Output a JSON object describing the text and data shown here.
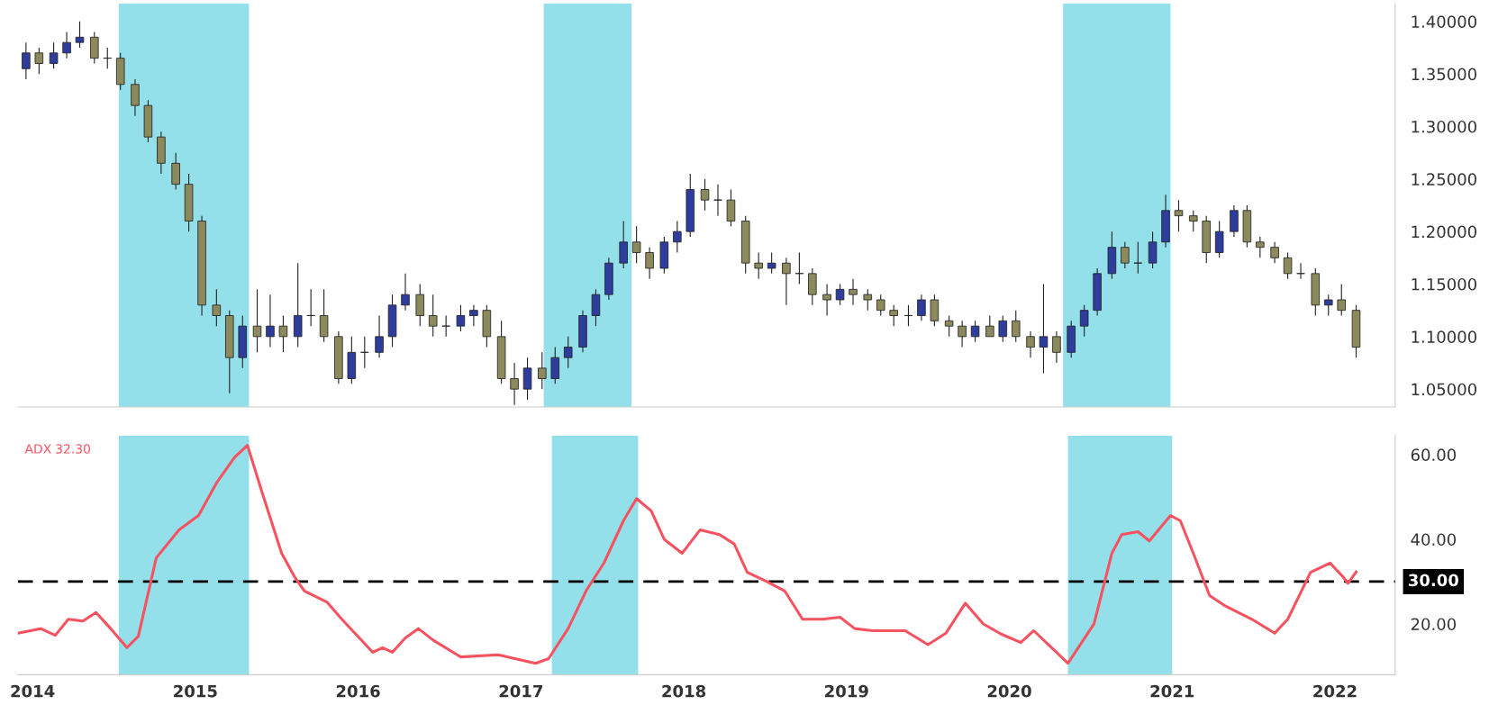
{
  "chart_data": [
    {
      "type": "candlestick",
      "tick_labels": "y",
      "x": [
        2013.96,
        2014.04,
        2014.13,
        2014.21,
        2014.29,
        2014.38,
        2014.46,
        2014.54,
        2014.63,
        2014.71,
        2014.79,
        2014.88,
        2014.96,
        2015.04,
        2015.13,
        2015.21,
        2015.29,
        2015.38,
        2015.46,
        2015.54,
        2015.63,
        2015.71,
        2015.79,
        2015.88,
        2015.96,
        2016.04,
        2016.13,
        2016.21,
        2016.29,
        2016.38,
        2016.46,
        2016.54,
        2016.63,
        2016.71,
        2016.79,
        2016.88,
        2016.96,
        2017.04,
        2017.13,
        2017.21,
        2017.29,
        2017.38,
        2017.46,
        2017.54,
        2017.63,
        2017.71,
        2017.79,
        2017.88,
        2017.96,
        2018.04,
        2018.13,
        2018.21,
        2018.29,
        2018.38,
        2018.46,
        2018.54,
        2018.63,
        2018.71,
        2018.79,
        2018.88,
        2018.96,
        2019.04,
        2019.13,
        2019.21,
        2019.29,
        2019.38,
        2019.46,
        2019.54,
        2019.63,
        2019.71,
        2019.79,
        2019.88,
        2019.96,
        2020.04,
        2020.13,
        2020.21,
        2020.29,
        2020.38,
        2020.46,
        2020.54,
        2020.63,
        2020.71,
        2020.79,
        2020.88,
        2020.96,
        2021.04,
        2021.13,
        2021.21,
        2021.29,
        2021.38,
        2021.46,
        2021.54,
        2021.63,
        2021.71,
        2021.79,
        2021.88,
        2021.96,
        2022.04,
        2022.13
      ],
      "ohlc": [
        [
          1.355,
          1.38,
          1.345,
          1.37
        ],
        [
          1.37,
          1.375,
          1.35,
          1.36
        ],
        [
          1.36,
          1.38,
          1.355,
          1.37
        ],
        [
          1.37,
          1.39,
          1.365,
          1.38
        ],
        [
          1.38,
          1.4,
          1.375,
          1.385
        ],
        [
          1.385,
          1.39,
          1.36,
          1.365
        ],
        [
          1.365,
          1.375,
          1.355,
          1.365
        ],
        [
          1.365,
          1.37,
          1.335,
          1.34
        ],
        [
          1.34,
          1.345,
          1.31,
          1.32
        ],
        [
          1.32,
          1.325,
          1.285,
          1.29
        ],
        [
          1.29,
          1.295,
          1.255,
          1.265
        ],
        [
          1.265,
          1.275,
          1.24,
          1.245
        ],
        [
          1.245,
          1.255,
          1.2,
          1.21
        ],
        [
          1.21,
          1.215,
          1.12,
          1.13
        ],
        [
          1.13,
          1.145,
          1.11,
          1.12
        ],
        [
          1.12,
          1.125,
          1.046,
          1.08
        ],
        [
          1.08,
          1.12,
          1.07,
          1.11
        ],
        [
          1.11,
          1.145,
          1.085,
          1.1
        ],
        [
          1.1,
          1.14,
          1.09,
          1.11
        ],
        [
          1.11,
          1.12,
          1.085,
          1.1
        ],
        [
          1.1,
          1.17,
          1.09,
          1.12
        ],
        [
          1.12,
          1.145,
          1.11,
          1.12
        ],
        [
          1.12,
          1.145,
          1.095,
          1.1
        ],
        [
          1.1,
          1.105,
          1.055,
          1.06
        ],
        [
          1.06,
          1.1,
          1.055,
          1.085
        ],
        [
          1.085,
          1.1,
          1.07,
          1.085
        ],
        [
          1.085,
          1.12,
          1.08,
          1.1
        ],
        [
          1.1,
          1.14,
          1.09,
          1.13
        ],
        [
          1.13,
          1.16,
          1.125,
          1.14
        ],
        [
          1.14,
          1.15,
          1.11,
          1.12
        ],
        [
          1.12,
          1.14,
          1.1,
          1.11
        ],
        [
          1.11,
          1.12,
          1.1,
          1.11
        ],
        [
          1.11,
          1.13,
          1.105,
          1.12
        ],
        [
          1.12,
          1.13,
          1.11,
          1.125
        ],
        [
          1.125,
          1.13,
          1.09,
          1.1
        ],
        [
          1.1,
          1.115,
          1.055,
          1.06
        ],
        [
          1.06,
          1.075,
          1.035,
          1.05
        ],
        [
          1.05,
          1.08,
          1.04,
          1.07
        ],
        [
          1.07,
          1.085,
          1.05,
          1.06
        ],
        [
          1.06,
          1.09,
          1.055,
          1.08
        ],
        [
          1.08,
          1.1,
          1.07,
          1.09
        ],
        [
          1.09,
          1.125,
          1.085,
          1.12
        ],
        [
          1.12,
          1.145,
          1.11,
          1.14
        ],
        [
          1.14,
          1.175,
          1.135,
          1.17
        ],
        [
          1.17,
          1.21,
          1.165,
          1.19
        ],
        [
          1.19,
          1.205,
          1.17,
          1.18
        ],
        [
          1.18,
          1.185,
          1.155,
          1.165
        ],
        [
          1.165,
          1.195,
          1.16,
          1.19
        ],
        [
          1.19,
          1.21,
          1.18,
          1.2
        ],
        [
          1.2,
          1.255,
          1.195,
          1.24
        ],
        [
          1.24,
          1.25,
          1.22,
          1.23
        ],
        [
          1.23,
          1.245,
          1.215,
          1.23
        ],
        [
          1.23,
          1.24,
          1.205,
          1.21
        ],
        [
          1.21,
          1.215,
          1.16,
          1.17
        ],
        [
          1.17,
          1.18,
          1.155,
          1.165
        ],
        [
          1.165,
          1.18,
          1.16,
          1.17
        ],
        [
          1.17,
          1.175,
          1.13,
          1.16
        ],
        [
          1.16,
          1.18,
          1.15,
          1.16
        ],
        [
          1.16,
          1.165,
          1.13,
          1.14
        ],
        [
          1.14,
          1.15,
          1.12,
          1.135
        ],
        [
          1.135,
          1.15,
          1.13,
          1.145
        ],
        [
          1.145,
          1.155,
          1.13,
          1.14
        ],
        [
          1.14,
          1.145,
          1.125,
          1.135
        ],
        [
          1.135,
          1.14,
          1.12,
          1.125
        ],
        [
          1.125,
          1.13,
          1.11,
          1.12
        ],
        [
          1.12,
          1.13,
          1.11,
          1.12
        ],
        [
          1.12,
          1.14,
          1.115,
          1.135
        ],
        [
          1.135,
          1.14,
          1.11,
          1.115
        ],
        [
          1.115,
          1.12,
          1.1,
          1.11
        ],
        [
          1.11,
          1.115,
          1.09,
          1.1
        ],
        [
          1.1,
          1.115,
          1.095,
          1.11
        ],
        [
          1.11,
          1.12,
          1.1,
          1.1
        ],
        [
          1.1,
          1.12,
          1.095,
          1.115
        ],
        [
          1.115,
          1.125,
          1.095,
          1.1
        ],
        [
          1.1,
          1.105,
          1.08,
          1.09
        ],
        [
          1.09,
          1.15,
          1.065,
          1.1
        ],
        [
          1.1,
          1.105,
          1.075,
          1.085
        ],
        [
          1.085,
          1.115,
          1.08,
          1.11
        ],
        [
          1.11,
          1.13,
          1.1,
          1.125
        ],
        [
          1.125,
          1.165,
          1.12,
          1.16
        ],
        [
          1.16,
          1.2,
          1.155,
          1.185
        ],
        [
          1.185,
          1.19,
          1.165,
          1.17
        ],
        [
          1.17,
          1.19,
          1.16,
          1.17
        ],
        [
          1.17,
          1.2,
          1.165,
          1.19
        ],
        [
          1.19,
          1.235,
          1.185,
          1.22
        ],
        [
          1.22,
          1.23,
          1.2,
          1.215
        ],
        [
          1.215,
          1.22,
          1.2,
          1.21
        ],
        [
          1.21,
          1.215,
          1.17,
          1.18
        ],
        [
          1.18,
          1.21,
          1.175,
          1.2
        ],
        [
          1.2,
          1.225,
          1.195,
          1.22
        ],
        [
          1.22,
          1.225,
          1.185,
          1.19
        ],
        [
          1.19,
          1.195,
          1.175,
          1.185
        ],
        [
          1.185,
          1.19,
          1.17,
          1.175
        ],
        [
          1.175,
          1.18,
          1.155,
          1.16
        ],
        [
          1.16,
          1.17,
          1.155,
          1.16
        ],
        [
          1.16,
          1.165,
          1.12,
          1.13
        ],
        [
          1.13,
          1.14,
          1.12,
          1.135
        ],
        [
          1.135,
          1.15,
          1.12,
          1.125
        ],
        [
          1.125,
          1.13,
          1.08,
          1.09
        ]
      ],
      "xlim": [
        2013.91,
        2022.37
      ],
      "xticks": [
        2014,
        2015,
        2016,
        2017,
        2018,
        2019,
        2020,
        2021,
        2022
      ],
      "ylim": [
        1.033,
        1.417
      ],
      "yticks": [
        {
          "value": 1.05,
          "label": "1.05000"
        },
        {
          "value": 1.1,
          "label": "1.10000"
        },
        {
          "value": 1.15,
          "label": "1.15000"
        },
        {
          "value": 1.2,
          "label": "1.20000"
        },
        {
          "value": 1.25,
          "label": "1.25000"
        },
        {
          "value": 1.3,
          "label": "1.30000"
        },
        {
          "value": 1.35,
          "label": "1.35000"
        },
        {
          "value": 1.4,
          "label": "1.40000"
        }
      ],
      "bands": [
        {
          "axis": "x",
          "from": 2014.53,
          "to": 2015.33,
          "color": "#93e0eb"
        },
        {
          "axis": "x",
          "from": 2017.14,
          "to": 2017.68,
          "color": "#93e0eb"
        },
        {
          "axis": "x",
          "from": 2020.33,
          "to": 2020.99,
          "color": "#93e0eb"
        }
      ]
    },
    {
      "type": "line",
      "series": [
        {
          "name": "ADX",
          "color": "#f7525f",
          "x": [
            2013.91,
            2014.05,
            2014.14,
            2014.22,
            2014.31,
            2014.39,
            2014.48,
            2014.58,
            2014.65,
            2014.76,
            2014.9,
            2015.02,
            2015.13,
            2015.24,
            2015.32,
            2015.41,
            2015.53,
            2015.61,
            2015.67,
            2015.81,
            2015.9,
            2016.09,
            2016.15,
            2016.21,
            2016.29,
            2016.37,
            2016.46,
            2016.63,
            2016.86,
            2017.09,
            2017.17,
            2017.29,
            2017.4,
            2017.51,
            2017.63,
            2017.71,
            2017.8,
            2017.88,
            2017.99,
            2018.1,
            2018.22,
            2018.31,
            2018.39,
            2018.51,
            2018.62,
            2018.73,
            2018.85,
            2018.96,
            2019.05,
            2019.16,
            2019.36,
            2019.5,
            2019.61,
            2019.73,
            2019.84,
            2019.95,
            2020.07,
            2020.15,
            2020.27,
            2020.36,
            2020.52,
            2020.63,
            2020.69,
            2020.79,
            2020.86,
            2020.99,
            2021.05,
            2021.13,
            2021.23,
            2021.32,
            2021.49,
            2021.63,
            2021.71,
            2021.85,
            2021.97,
            2022.05,
            2022.08,
            2022.13
          ],
          "values": [
            17.8,
            18.9,
            17.3,
            21.1,
            20.7,
            22.7,
            18.9,
            14.4,
            17.1,
            35.6,
            42.2,
            45.6,
            53.3,
            59.3,
            62.2,
            51.1,
            36.7,
            31.1,
            27.8,
            25.1,
            21.1,
            13.3,
            14.4,
            13.3,
            16.7,
            18.9,
            16.2,
            12.2,
            12.7,
            10.7,
            11.8,
            18.9,
            27.8,
            34.4,
            44.4,
            49.6,
            46.7,
            40.0,
            36.7,
            42.2,
            41.1,
            38.9,
            32.2,
            30.0,
            27.8,
            21.1,
            21.1,
            21.6,
            18.9,
            18.4,
            18.4,
            15.1,
            17.8,
            24.9,
            20.0,
            17.6,
            15.6,
            18.4,
            14.0,
            10.7,
            20.0,
            36.7,
            41.1,
            41.8,
            39.6,
            45.6,
            44.4,
            36.7,
            26.7,
            24.4,
            21.1,
            17.8,
            21.1,
            32.2,
            34.4,
            31.1,
            29.6,
            32.3
          ]
        }
      ],
      "annotations": [
        "32.30"
      ],
      "xlim": [
        2013.91,
        2022.37
      ],
      "xticks": [
        2014,
        2015,
        2016,
        2017,
        2018,
        2019,
        2020,
        2021,
        2022
      ],
      "ylim": [
        8,
        64.5
      ],
      "yticks": [
        {
          "value": 20,
          "label": "20.00"
        },
        {
          "value": 40,
          "label": "40.00"
        },
        {
          "value": 60,
          "label": "60.00"
        }
      ],
      "ref_lines": [
        {
          "axis": "y",
          "value": 30,
          "label": "30.00",
          "line_style": "dashed",
          "color": "#000000"
        }
      ],
      "bands": [
        {
          "axis": "x",
          "from": 2014.53,
          "to": 2015.33,
          "color": "#93e0eb"
        },
        {
          "axis": "x",
          "from": 2017.19,
          "to": 2017.72,
          "color": "#93e0eb"
        },
        {
          "axis": "x",
          "from": 2020.36,
          "to": 2021.0,
          "color": "#93e0eb"
        }
      ]
    }
  ]
}
